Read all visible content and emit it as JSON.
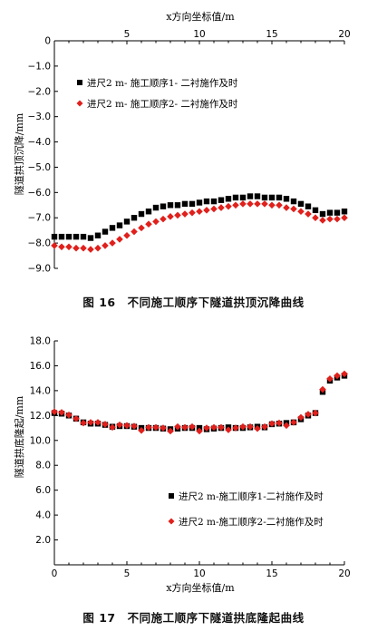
{
  "chart_data": [
    {
      "type": "scatter",
      "xlabel": "x方向坐标值/m",
      "ylabel": "隧道拱顶沉降/mm",
      "xaxis_position": "top",
      "xlim": [
        0,
        20
      ],
      "ylim": [
        -9.0,
        0
      ],
      "xticks": [
        5,
        10,
        15,
        20
      ],
      "yticks": [
        "0",
        "−1.0",
        "−2.0",
        "−3.0",
        "−4.0",
        "−5.0",
        "−6.0",
        "−7.0",
        "−8.0",
        "−9.0"
      ],
      "ytick_values": [
        0,
        -1,
        -2,
        -3,
        -4,
        -5,
        -6,
        -7,
        -8,
        -9
      ],
      "legend_position": "top-left",
      "series": [
        {
          "name": "进尺2 m- 施工顺序1- 二衬施作及时",
          "marker": "square",
          "color": "#000000",
          "x": [
            0,
            0.5,
            1,
            1.5,
            2,
            2.5,
            3,
            3.5,
            4,
            4.5,
            5,
            5.5,
            6,
            6.5,
            7,
            7.5,
            8,
            8.5,
            9,
            9.5,
            10,
            10.5,
            11,
            11.5,
            12,
            12.5,
            13,
            13.5,
            14,
            14.5,
            15,
            15.5,
            16,
            16.5,
            17,
            17.5,
            18,
            18.5,
            19,
            19.5,
            20
          ],
          "values": [
            -7.75,
            -7.75,
            -7.75,
            -7.75,
            -7.75,
            -7.8,
            -7.7,
            -7.55,
            -7.4,
            -7.3,
            -7.15,
            -7.0,
            -6.85,
            -6.75,
            -6.6,
            -6.55,
            -6.5,
            -6.5,
            -6.45,
            -6.45,
            -6.4,
            -6.35,
            -6.35,
            -6.3,
            -6.25,
            -6.2,
            -6.2,
            -6.15,
            -6.15,
            -6.2,
            -6.2,
            -6.2,
            -6.25,
            -6.35,
            -6.45,
            -6.55,
            -6.7,
            -6.85,
            -6.8,
            -6.8,
            -6.75
          ]
        },
        {
          "name": "进尺2 m- 施工顺序2- 二衬施作及时",
          "marker": "diamond",
          "color": "#e0201c",
          "x": [
            0,
            0.5,
            1,
            1.5,
            2,
            2.5,
            3,
            3.5,
            4,
            4.5,
            5,
            5.5,
            6,
            6.5,
            7,
            7.5,
            8,
            8.5,
            9,
            9.5,
            10,
            10.5,
            11,
            11.5,
            12,
            12.5,
            13,
            13.5,
            14,
            14.5,
            15,
            15.5,
            16,
            16.5,
            17,
            17.5,
            18,
            18.5,
            19,
            19.5,
            20
          ],
          "values": [
            -8.1,
            -8.15,
            -8.15,
            -8.2,
            -8.2,
            -8.25,
            -8.2,
            -8.1,
            -8.0,
            -7.85,
            -7.7,
            -7.55,
            -7.4,
            -7.25,
            -7.15,
            -7.05,
            -6.95,
            -6.9,
            -6.85,
            -6.8,
            -6.75,
            -6.7,
            -6.65,
            -6.6,
            -6.55,
            -6.5,
            -6.45,
            -6.45,
            -6.45,
            -6.45,
            -6.5,
            -6.5,
            -6.6,
            -6.65,
            -6.75,
            -6.85,
            -7.0,
            -7.1,
            -7.05,
            -7.05,
            -7.0
          ]
        }
      ],
      "caption": "图 16　不同施工顺序下隧道拱顶沉降曲线"
    },
    {
      "type": "scatter",
      "xlabel": "x方向坐标值/m",
      "ylabel": "隧道拱底隆起/mm",
      "xaxis_position": "bottom",
      "xlim": [
        0,
        20
      ],
      "ylim": [
        0,
        18.0
      ],
      "xticks": [
        0,
        5,
        10,
        15,
        20
      ],
      "yticks": [
        "2.0",
        "4.0",
        "6.0",
        "8.0",
        "10.0",
        "12.0",
        "14.0",
        "16.0",
        "18.0"
      ],
      "ytick_values": [
        2,
        4,
        6,
        8,
        10,
        12,
        14,
        16,
        18
      ],
      "legend_position": "bottom-center",
      "series": [
        {
          "name": "进尺2 m-施工顺序1-二衬施作及时",
          "marker": "square",
          "color": "#000000",
          "x": [
            0,
            0.5,
            1,
            1.5,
            2,
            2.5,
            3,
            3.5,
            4,
            4.5,
            5,
            5.5,
            6,
            6.5,
            7,
            7.5,
            8,
            8.5,
            9,
            9.5,
            10,
            10.5,
            11,
            11.5,
            12,
            12.5,
            13,
            13.5,
            14,
            14.5,
            15,
            15.5,
            16,
            16.5,
            17,
            17.5,
            18,
            18.5,
            19,
            19.5,
            20
          ],
          "values": [
            12.2,
            12.15,
            12.0,
            11.75,
            11.45,
            11.35,
            11.35,
            11.25,
            11.1,
            11.15,
            11.15,
            11.1,
            11.0,
            11.0,
            11.0,
            10.95,
            10.9,
            10.95,
            11.0,
            11.0,
            11.0,
            10.9,
            10.95,
            11.0,
            11.05,
            11.0,
            11.0,
            11.05,
            11.1,
            11.05,
            11.3,
            11.35,
            11.4,
            11.45,
            11.7,
            12.0,
            12.2,
            13.9,
            14.8,
            15.05,
            15.2
          ]
        },
        {
          "name": "进尺2 m-施工顺序2-二衬施作及时",
          "marker": "diamond",
          "color": "#e0201c",
          "x": [
            0,
            0.5,
            1,
            1.5,
            2,
            2.5,
            3,
            3.5,
            4,
            4.5,
            5,
            5.5,
            6,
            6.5,
            7,
            7.5,
            8,
            8.5,
            9,
            9.5,
            10,
            10.5,
            11,
            11.5,
            12,
            12.5,
            13,
            13.5,
            14,
            14.5,
            15,
            15.5,
            16,
            16.5,
            17,
            17.5,
            18,
            18.5,
            19,
            19.5,
            20
          ],
          "values": [
            12.3,
            12.25,
            12.05,
            11.75,
            11.4,
            11.45,
            11.45,
            11.3,
            11.05,
            11.25,
            11.2,
            11.15,
            10.8,
            11.05,
            11.05,
            11.0,
            10.75,
            11.1,
            11.05,
            11.1,
            10.75,
            11.0,
            11.05,
            11.05,
            10.85,
            11.0,
            11.1,
            11.1,
            10.95,
            11.1,
            11.35,
            11.4,
            11.2,
            11.45,
            11.85,
            12.1,
            12.2,
            14.1,
            14.95,
            15.2,
            15.35
          ]
        }
      ],
      "caption": "图 17　不同施工顺序下隧道拱底隆起曲线"
    }
  ]
}
